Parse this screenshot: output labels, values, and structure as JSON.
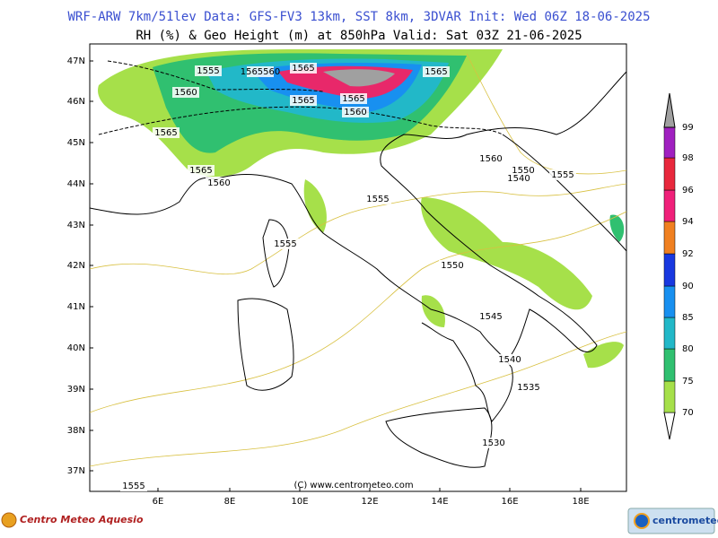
{
  "header": {
    "line1": "WRF-ARW 7km/51lev  Data: GFS-FV3 13km, SST 8km, 3DVAR  Init: Wed 06Z 18-06-2025",
    "line2": "RH (%) & Geo Height (m) at 850hPa  Valid: Sat 03Z 21-06-2025"
  },
  "latitudes": [
    "47N",
    "46N",
    "45N",
    "44N",
    "43N",
    "42N",
    "41N",
    "40N",
    "39N",
    "38N",
    "37N"
  ],
  "longitudes": [
    "6E",
    "8E",
    "10E",
    "12E",
    "14E",
    "16E",
    "18E"
  ],
  "contour_labels": [
    "1555",
    "1565560",
    "1565",
    "1565",
    "1560",
    "1565",
    "1565",
    "1560",
    "1565",
    "1565",
    "1560",
    "1560",
    "1550",
    "1540",
    "1555",
    "1555",
    "1555",
    "1550",
    "1545",
    "1540",
    "1535",
    "1530",
    "1555"
  ],
  "colorbar": {
    "levels": [
      70,
      75,
      80,
      85,
      90,
      92,
      94,
      96,
      98,
      99
    ]
  },
  "credits": {
    "copyright": "(C) www.centrometeo.com",
    "left_logo": "Centro Meteo Aquesio",
    "right_logo": "centrometeo"
  }
}
